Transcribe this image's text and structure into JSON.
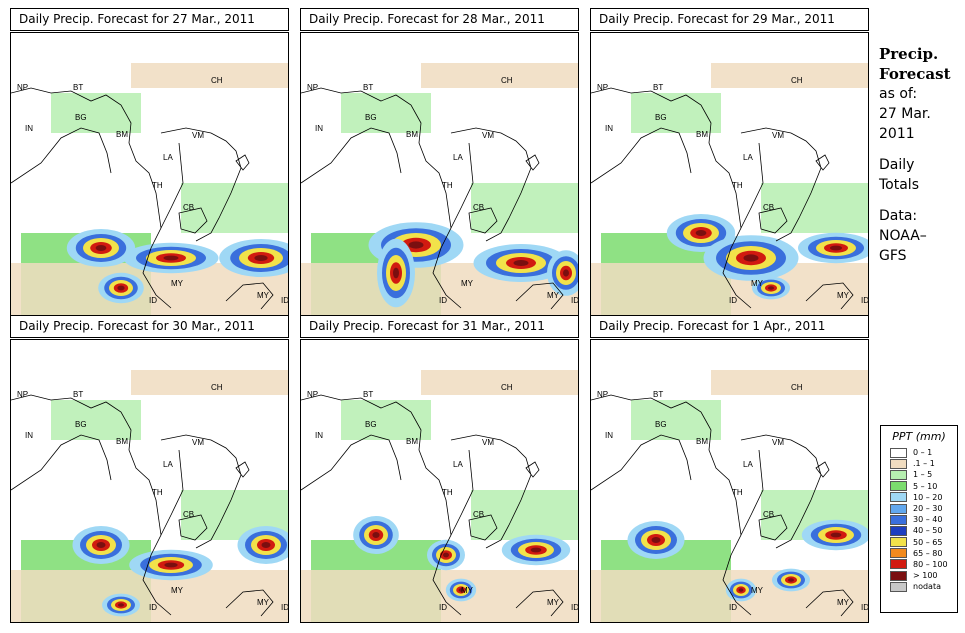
{
  "panels": [
    {
      "title": "Daily Precip. Forecast for  27 Mar., 2011"
    },
    {
      "title": "Daily Precip. Forecast for  28 Mar., 2011"
    },
    {
      "title": "Daily Precip. Forecast for  29 Mar., 2011"
    },
    {
      "title": "Daily Precip. Forecast for  30 Mar., 2011"
    },
    {
      "title": "Daily Precip. Forecast for  31 Mar., 2011"
    },
    {
      "title": "Daily Precip. Forecast for  1 Apr., 2011"
    }
  ],
  "map_labels": [
    "CH",
    "NP",
    "BT",
    "BG",
    "IN",
    "BM",
    "VM",
    "LA",
    "TH",
    "CB",
    "MY",
    "ID",
    "MY",
    "ID"
  ],
  "sidebar": {
    "title_line1": "Precip.",
    "title_line2": "Forecast",
    "asof_line1": "as of:",
    "asof_line2": "27 Mar.",
    "asof_line3": "2011",
    "totals_line1": "Daily",
    "totals_line2": "Totals",
    "data_line1": "Data:",
    "data_line2": "NOAA–",
    "data_line3": "GFS"
  },
  "legend": {
    "title": "PPT (mm)",
    "items": [
      {
        "label": "0 – 1",
        "color": "#ffffff"
      },
      {
        "label": ".1 – 1",
        "color": "#f0dcc0"
      },
      {
        "label": "1 – 5",
        "color": "#b6efb0"
      },
      {
        "label": "5 – 10",
        "color": "#7bdc6e"
      },
      {
        "label": "10 – 20",
        "color": "#9fd8f5"
      },
      {
        "label": "20 – 30",
        "color": "#62a8ee"
      },
      {
        "label": "30 – 40",
        "color": "#3a6fdc"
      },
      {
        "label": "40 – 50",
        "color": "#1e3fbf"
      },
      {
        "label": "50 – 65",
        "color": "#f2e24a"
      },
      {
        "label": "65 – 80",
        "color": "#f28a1e"
      },
      {
        "label": "80 – 100",
        "color": "#d11a10"
      },
      {
        "label": "> 100",
        "color": "#7a0f10"
      },
      {
        "label": "nodata",
        "color": "#c8c8c8"
      }
    ]
  }
}
